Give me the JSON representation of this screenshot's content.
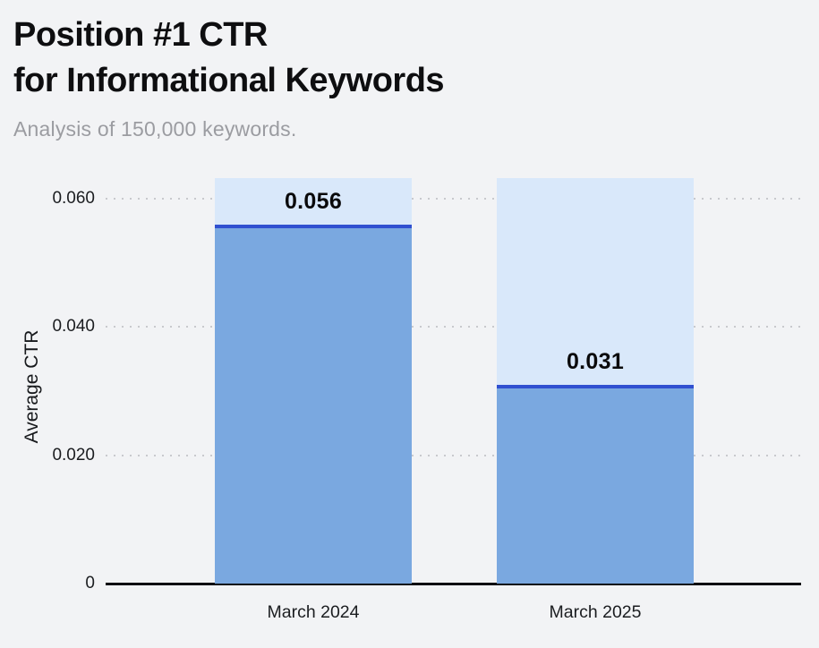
{
  "chart_data": {
    "type": "bar",
    "title": "Position #1 CTR for Informational Keywords",
    "title_lines": [
      "Position #1 CTR",
      "for Informational Keywords"
    ],
    "subtitle": "Analysis of 150,000 keywords.",
    "categories": [
      "March 2024",
      "March 2025"
    ],
    "values": [
      0.056,
      0.031
    ],
    "value_labels": [
      "0.056",
      "0.031"
    ],
    "xlabel": "",
    "ylabel": "Average CTR",
    "ylim": [
      0,
      0.0632
    ],
    "yticks": [
      0,
      0.02,
      0.04,
      0.06
    ],
    "ytick_labels": [
      "0",
      "0.020",
      "0.040",
      "0.060"
    ],
    "grid": "horizontal-dotted",
    "legend_position": "none",
    "bar_style": "solid value fill with dark blue top line, drawn over full-height light blue background bar",
    "colors": {
      "page_background": "#f2f3f5",
      "bar_background": "#d9e8fa",
      "bar_fill": "#7aa8e0",
      "value_line": "#3050d0",
      "grid_dots": "#c8c9cd",
      "axis_line": "#0e0f12",
      "title_text": "#0e0e10",
      "subtitle_text": "#9b9ca1",
      "tick_text": "#1b1d20",
      "value_label_text": "#0a0a0b"
    }
  }
}
